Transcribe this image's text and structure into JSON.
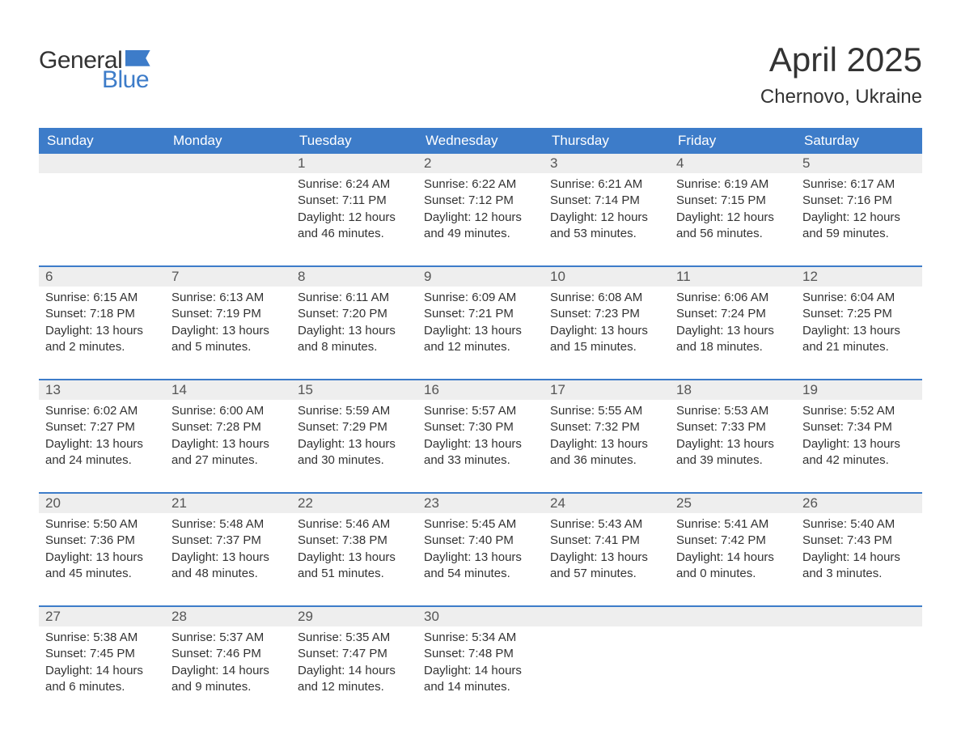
{
  "logo": {
    "text_general": "General",
    "text_blue": "Blue",
    "icon_color": "#3d7cc9"
  },
  "title": "April 2025",
  "location": "Chernovo, Ukraine",
  "colors": {
    "header_bg": "#3d7cc9",
    "daynum_bg": "#eeeeee",
    "text": "#333333",
    "muted_text": "#555555",
    "background": "#ffffff",
    "row_border": "#3d7cc9"
  },
  "typography": {
    "title_fontsize": 42,
    "location_fontsize": 24,
    "weekday_fontsize": 17,
    "daynum_fontsize": 17,
    "content_fontsize": 15,
    "logo_fontsize": 30
  },
  "weekdays": [
    "Sunday",
    "Monday",
    "Tuesday",
    "Wednesday",
    "Thursday",
    "Friday",
    "Saturday"
  ],
  "weeks": [
    [
      null,
      null,
      {
        "n": "1",
        "sunrise": "Sunrise: 6:24 AM",
        "sunset": "Sunset: 7:11 PM",
        "daylight": "Daylight: 12 hours and 46 minutes."
      },
      {
        "n": "2",
        "sunrise": "Sunrise: 6:22 AM",
        "sunset": "Sunset: 7:12 PM",
        "daylight": "Daylight: 12 hours and 49 minutes."
      },
      {
        "n": "3",
        "sunrise": "Sunrise: 6:21 AM",
        "sunset": "Sunset: 7:14 PM",
        "daylight": "Daylight: 12 hours and 53 minutes."
      },
      {
        "n": "4",
        "sunrise": "Sunrise: 6:19 AM",
        "sunset": "Sunset: 7:15 PM",
        "daylight": "Daylight: 12 hours and 56 minutes."
      },
      {
        "n": "5",
        "sunrise": "Sunrise: 6:17 AM",
        "sunset": "Sunset: 7:16 PM",
        "daylight": "Daylight: 12 hours and 59 minutes."
      }
    ],
    [
      {
        "n": "6",
        "sunrise": "Sunrise: 6:15 AM",
        "sunset": "Sunset: 7:18 PM",
        "daylight": "Daylight: 13 hours and 2 minutes."
      },
      {
        "n": "7",
        "sunrise": "Sunrise: 6:13 AM",
        "sunset": "Sunset: 7:19 PM",
        "daylight": "Daylight: 13 hours and 5 minutes."
      },
      {
        "n": "8",
        "sunrise": "Sunrise: 6:11 AM",
        "sunset": "Sunset: 7:20 PM",
        "daylight": "Daylight: 13 hours and 8 minutes."
      },
      {
        "n": "9",
        "sunrise": "Sunrise: 6:09 AM",
        "sunset": "Sunset: 7:21 PM",
        "daylight": "Daylight: 13 hours and 12 minutes."
      },
      {
        "n": "10",
        "sunrise": "Sunrise: 6:08 AM",
        "sunset": "Sunset: 7:23 PM",
        "daylight": "Daylight: 13 hours and 15 minutes."
      },
      {
        "n": "11",
        "sunrise": "Sunrise: 6:06 AM",
        "sunset": "Sunset: 7:24 PM",
        "daylight": "Daylight: 13 hours and 18 minutes."
      },
      {
        "n": "12",
        "sunrise": "Sunrise: 6:04 AM",
        "sunset": "Sunset: 7:25 PM",
        "daylight": "Daylight: 13 hours and 21 minutes."
      }
    ],
    [
      {
        "n": "13",
        "sunrise": "Sunrise: 6:02 AM",
        "sunset": "Sunset: 7:27 PM",
        "daylight": "Daylight: 13 hours and 24 minutes."
      },
      {
        "n": "14",
        "sunrise": "Sunrise: 6:00 AM",
        "sunset": "Sunset: 7:28 PM",
        "daylight": "Daylight: 13 hours and 27 minutes."
      },
      {
        "n": "15",
        "sunrise": "Sunrise: 5:59 AM",
        "sunset": "Sunset: 7:29 PM",
        "daylight": "Daylight: 13 hours and 30 minutes."
      },
      {
        "n": "16",
        "sunrise": "Sunrise: 5:57 AM",
        "sunset": "Sunset: 7:30 PM",
        "daylight": "Daylight: 13 hours and 33 minutes."
      },
      {
        "n": "17",
        "sunrise": "Sunrise: 5:55 AM",
        "sunset": "Sunset: 7:32 PM",
        "daylight": "Daylight: 13 hours and 36 minutes."
      },
      {
        "n": "18",
        "sunrise": "Sunrise: 5:53 AM",
        "sunset": "Sunset: 7:33 PM",
        "daylight": "Daylight: 13 hours and 39 minutes."
      },
      {
        "n": "19",
        "sunrise": "Sunrise: 5:52 AM",
        "sunset": "Sunset: 7:34 PM",
        "daylight": "Daylight: 13 hours and 42 minutes."
      }
    ],
    [
      {
        "n": "20",
        "sunrise": "Sunrise: 5:50 AM",
        "sunset": "Sunset: 7:36 PM",
        "daylight": "Daylight: 13 hours and 45 minutes."
      },
      {
        "n": "21",
        "sunrise": "Sunrise: 5:48 AM",
        "sunset": "Sunset: 7:37 PM",
        "daylight": "Daylight: 13 hours and 48 minutes."
      },
      {
        "n": "22",
        "sunrise": "Sunrise: 5:46 AM",
        "sunset": "Sunset: 7:38 PM",
        "daylight": "Daylight: 13 hours and 51 minutes."
      },
      {
        "n": "23",
        "sunrise": "Sunrise: 5:45 AM",
        "sunset": "Sunset: 7:40 PM",
        "daylight": "Daylight: 13 hours and 54 minutes."
      },
      {
        "n": "24",
        "sunrise": "Sunrise: 5:43 AM",
        "sunset": "Sunset: 7:41 PM",
        "daylight": "Daylight: 13 hours and 57 minutes."
      },
      {
        "n": "25",
        "sunrise": "Sunrise: 5:41 AM",
        "sunset": "Sunset: 7:42 PM",
        "daylight": "Daylight: 14 hours and 0 minutes."
      },
      {
        "n": "26",
        "sunrise": "Sunrise: 5:40 AM",
        "sunset": "Sunset: 7:43 PM",
        "daylight": "Daylight: 14 hours and 3 minutes."
      }
    ],
    [
      {
        "n": "27",
        "sunrise": "Sunrise: 5:38 AM",
        "sunset": "Sunset: 7:45 PM",
        "daylight": "Daylight: 14 hours and 6 minutes."
      },
      {
        "n": "28",
        "sunrise": "Sunrise: 5:37 AM",
        "sunset": "Sunset: 7:46 PM",
        "daylight": "Daylight: 14 hours and 9 minutes."
      },
      {
        "n": "29",
        "sunrise": "Sunrise: 5:35 AM",
        "sunset": "Sunset: 7:47 PM",
        "daylight": "Daylight: 14 hours and 12 minutes."
      },
      {
        "n": "30",
        "sunrise": "Sunrise: 5:34 AM",
        "sunset": "Sunset: 7:48 PM",
        "daylight": "Daylight: 14 hours and 14 minutes."
      },
      null,
      null,
      null
    ]
  ]
}
